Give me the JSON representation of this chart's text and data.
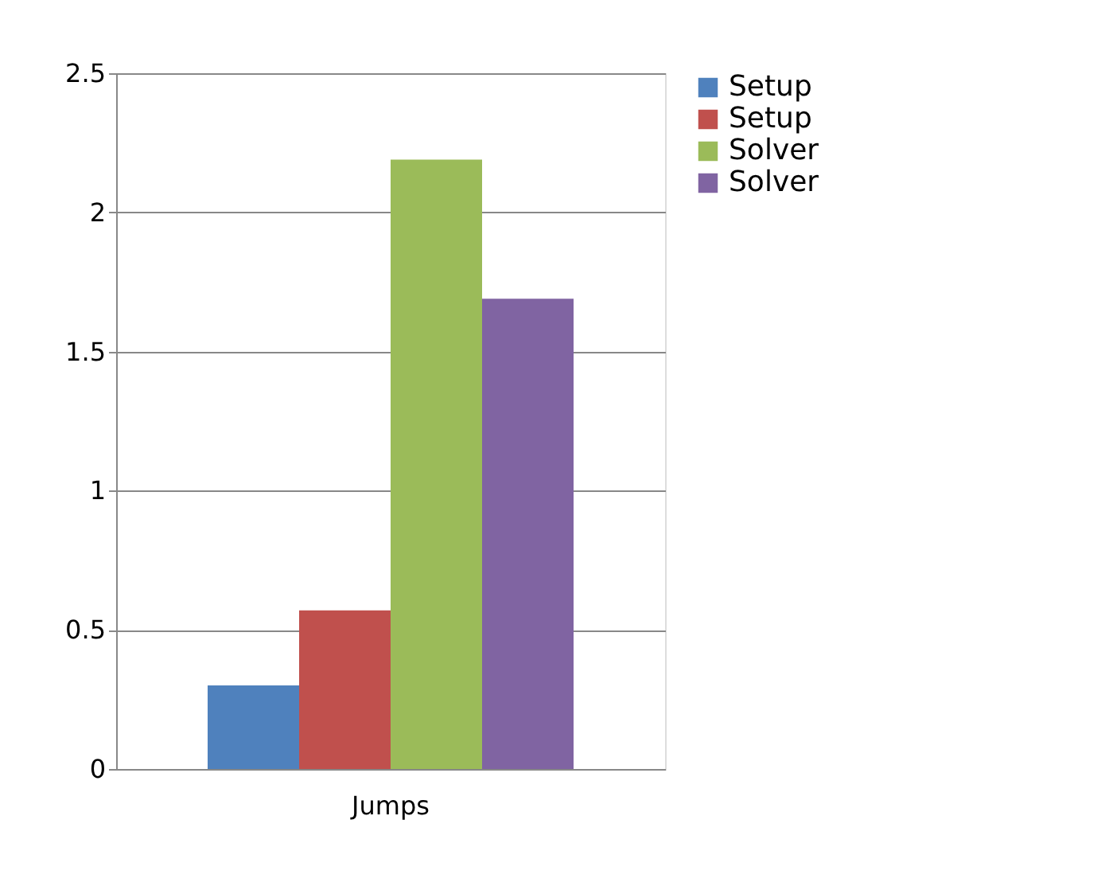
{
  "chart_data": {
    "type": "bar",
    "categories": [
      "Jumps"
    ],
    "series": [
      {
        "name": "Setup",
        "color": "#4f81bd",
        "values": [
          0.3
        ]
      },
      {
        "name": "Setup",
        "color": "#c0504d",
        "values": [
          0.57
        ]
      },
      {
        "name": "Solver",
        "color": "#9bbb59",
        "values": [
          2.19
        ]
      },
      {
        "name": "Solver",
        "color": "#8064a2",
        "values": [
          1.69
        ]
      }
    ],
    "ylim": [
      0,
      2.5
    ],
    "yticks": [
      0,
      0.5,
      1,
      1.5,
      2,
      2.5
    ],
    "grid": "y",
    "legend": "right"
  }
}
